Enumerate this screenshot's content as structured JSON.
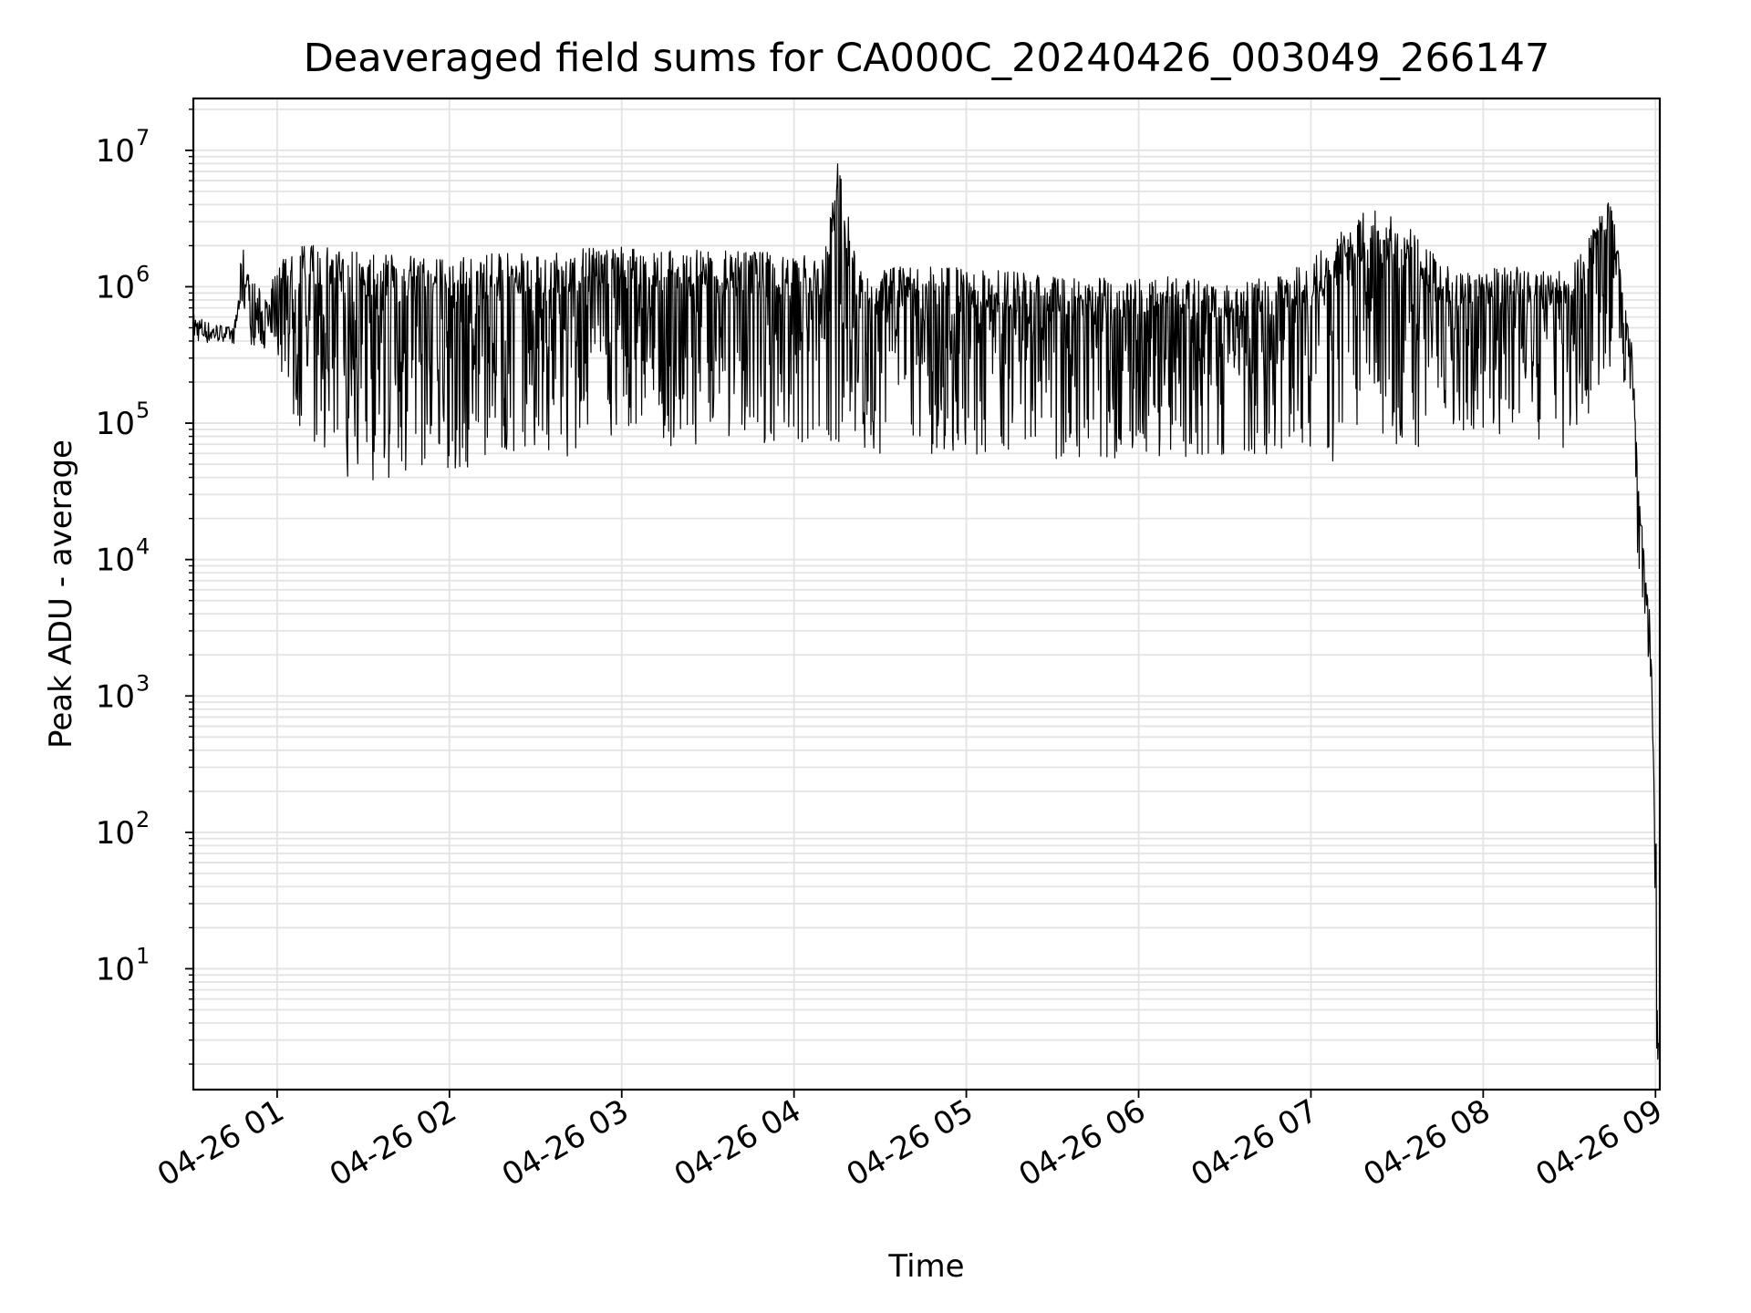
{
  "chart_data": {
    "type": "line",
    "title": "Deaveraged field sums for CA000C_20240426_003049_266147",
    "xlabel": "Time",
    "ylabel": "Peak ADU - average",
    "yscale": "log",
    "grid": true,
    "grid_minor": true,
    "legend": "none",
    "line_color": "#000000",
    "grid_color": "#e3e3e3",
    "xlim": [
      "2024-04-26 00:30:49",
      "2024-04-26 09:01:30"
    ],
    "ylim": [
      1.3,
      24000000.0
    ],
    "x_ticks": [
      {
        "t": "2024-04-26 01:00",
        "label": "04-26 01"
      },
      {
        "t": "2024-04-26 02:00",
        "label": "04-26 02"
      },
      {
        "t": "2024-04-26 03:00",
        "label": "04-26 03"
      },
      {
        "t": "2024-04-26 04:00",
        "label": "04-26 04"
      },
      {
        "t": "2024-04-26 05:00",
        "label": "04-26 05"
      },
      {
        "t": "2024-04-26 06:00",
        "label": "04-26 06"
      },
      {
        "t": "2024-04-26 07:00",
        "label": "04-26 07"
      },
      {
        "t": "2024-04-26 08:00",
        "label": "04-26 08"
      },
      {
        "t": "2024-04-26 09:00",
        "label": "04-26 09"
      }
    ],
    "y_ticks": [
      {
        "value": 10,
        "base": "10",
        "exp": "1"
      },
      {
        "value": 100,
        "base": "10",
        "exp": "2"
      },
      {
        "value": 1000,
        "base": "10",
        "exp": "3"
      },
      {
        "value": 10000,
        "base": "10",
        "exp": "4"
      },
      {
        "value": 100000,
        "base": "10",
        "exp": "5"
      },
      {
        "value": 1000000,
        "base": "10",
        "exp": "6"
      },
      {
        "value": 10000000,
        "base": "10",
        "exp": "7"
      }
    ],
    "series": [
      {
        "x": [
          "2024-04-26 00:31",
          "2024-04-26 00:36",
          "2024-04-26 00:42",
          "2024-04-26 00:45",
          "2024-04-26 00:48",
          "2024-04-26 00:50",
          "2024-04-26 00:56",
          "2024-04-26 01:00",
          "2024-04-26 01:05",
          "2024-04-26 01:08",
          "2024-04-26 01:12",
          "2024-04-26 01:20",
          "2024-04-26 01:30",
          "2024-04-26 01:40",
          "2024-04-26 01:45",
          "2024-04-26 01:55",
          "2024-04-26 02:05",
          "2024-04-26 02:20",
          "2024-04-26 02:40",
          "2024-04-26 02:55",
          "2024-04-26 03:10",
          "2024-04-26 03:30",
          "2024-04-26 03:50",
          "2024-04-26 04:10",
          "2024-04-26 04:15",
          "2024-04-26 04:22",
          "2024-04-26 04:30",
          "2024-04-26 04:50",
          "2024-04-26 05:10",
          "2024-04-26 05:30",
          "2024-04-26 05:50",
          "2024-04-26 06:10",
          "2024-04-26 06:30",
          "2024-04-26 06:50",
          "2024-04-26 07:15",
          "2024-04-26 07:20",
          "2024-04-26 07:30",
          "2024-04-26 07:38",
          "2024-04-26 07:50",
          "2024-04-26 08:10",
          "2024-04-26 08:30",
          "2024-04-26 08:45",
          "2024-04-26 08:48",
          "2024-04-26 08:52",
          "2024-04-26 08:54",
          "2024-04-26 08:56",
          "2024-04-26 08:58",
          "2024-04-26 09:00",
          "2024-04-26 09:01"
        ],
        "upper": [
          650000,
          560000,
          520000,
          500000,
          2100000,
          1300000,
          850000,
          1400000,
          1900000,
          2000000,
          2100000,
          1900000,
          1800000,
          1700000,
          1700000,
          1600000,
          1700000,
          1800000,
          1850000,
          2000000,
          1900000,
          1850000,
          1900000,
          1600000,
          11000000,
          1500000,
          1450000,
          1400000,
          1350000,
          1200000,
          1150000,
          1200000,
          1100000,
          1200000,
          3000000,
          3800000,
          3600000,
          2200000,
          1300000,
          1400000,
          1300000,
          5000000,
          1150000,
          350000,
          40000,
          12000,
          4500,
          200,
          7
        ],
        "lower": [
          400000,
          380000,
          400000,
          380000,
          700000,
          380000,
          350000,
          300000,
          120000,
          90000,
          75000,
          45000,
          33000,
          40000,
          45000,
          48000,
          45000,
          55000,
          55000,
          70000,
          70000,
          65000,
          70000,
          60000,
          55000,
          60000,
          60000,
          60000,
          55000,
          55000,
          55000,
          55000,
          58000,
          60000,
          48000,
          130000,
          50000,
          55000,
          90000,
          75000,
          65000,
          250000,
          300000,
          60000,
          8000,
          3500,
          1500,
          2.8,
          1.3
        ]
      }
    ]
  }
}
